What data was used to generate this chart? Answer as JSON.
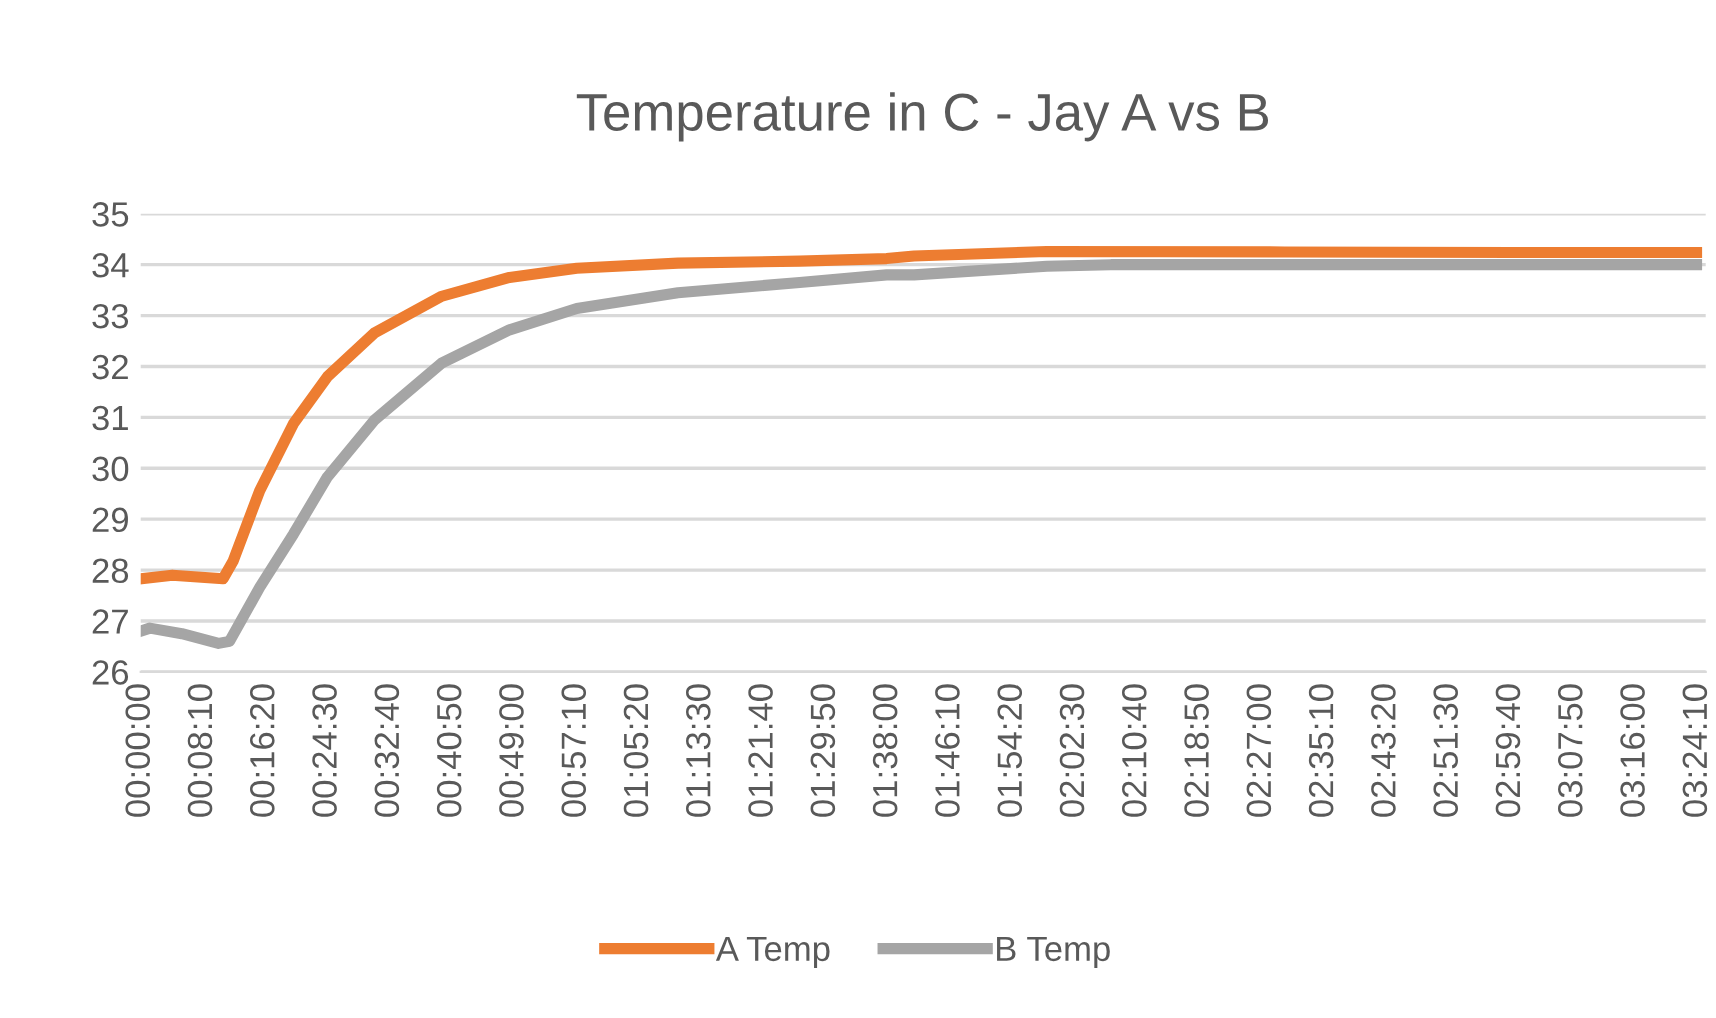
{
  "chart_data": {
    "type": "line",
    "title": "Temperature in C - Jay A vs B",
    "series": [
      {
        "name": "A Temp",
        "color": "#ed7d31",
        "x": [
          0,
          0.069,
          0.18,
          0.202,
          0.26,
          0.334,
          0.408,
          0.511,
          0.658,
          0.806,
          0.953,
          1.174,
          1.44,
          1.63,
          1.69,
          1.98,
          2.5,
          3.0,
          3.4
        ],
        "values": [
          27.83,
          27.9,
          27.83,
          28.18,
          29.56,
          30.88,
          31.8,
          32.66,
          33.38,
          33.75,
          33.93,
          34.03,
          34.07,
          34.12,
          34.17,
          34.26,
          34.25,
          34.24,
          34.24
        ]
      },
      {
        "name": "B Temp",
        "color": "#a5a5a5",
        "x": [
          0,
          0.02,
          0.09,
          0.17,
          0.194,
          0.26,
          0.334,
          0.408,
          0.511,
          0.658,
          0.806,
          0.953,
          1.174,
          1.44,
          1.63,
          1.69,
          1.98,
          2.12,
          2.8,
          3.4
        ],
        "values": [
          26.8,
          26.86,
          26.75,
          26.56,
          26.6,
          27.66,
          28.71,
          29.83,
          30.95,
          32.07,
          32.72,
          33.14,
          33.45,
          33.65,
          33.8,
          33.8,
          33.97,
          34.0,
          34.0,
          34.0
        ]
      }
    ],
    "xlim": [
      0,
      3.42
    ],
    "xticks": [
      {
        "value": 0,
        "label": "00:00:00"
      },
      {
        "value": 0.1361,
        "label": "00:08:10"
      },
      {
        "value": 0.2722,
        "label": "00:16:20"
      },
      {
        "value": 0.4083,
        "label": "00:24:30"
      },
      {
        "value": 0.5444,
        "label": "00:32:40"
      },
      {
        "value": 0.6806,
        "label": "00:40:50"
      },
      {
        "value": 0.8167,
        "label": "00:49:00"
      },
      {
        "value": 0.9528,
        "label": "00:57:10"
      },
      {
        "value": 1.0889,
        "label": "01:05:20"
      },
      {
        "value": 1.225,
        "label": "01:13:30"
      },
      {
        "value": 1.3611,
        "label": "01:21:40"
      },
      {
        "value": 1.4972,
        "label": "01:29:50"
      },
      {
        "value": 1.6333,
        "label": "01:38:00"
      },
      {
        "value": 1.7694,
        "label": "01:46:10"
      },
      {
        "value": 1.9056,
        "label": "01:54:20"
      },
      {
        "value": 2.0417,
        "label": "02:02:30"
      },
      {
        "value": 2.1778,
        "label": "02:10:40"
      },
      {
        "value": 2.3139,
        "label": "02:18:50"
      },
      {
        "value": 2.45,
        "label": "02:27:00"
      },
      {
        "value": 2.5861,
        "label": "02:35:10"
      },
      {
        "value": 2.7222,
        "label": "02:43:20"
      },
      {
        "value": 2.8583,
        "label": "02:51:30"
      },
      {
        "value": 2.9944,
        "label": "02:59:40"
      },
      {
        "value": 3.1306,
        "label": "03:07:50"
      },
      {
        "value": 3.2667,
        "label": "03:16:00"
      },
      {
        "value": 3.4028,
        "label": "03:24:10"
      }
    ],
    "ylim": [
      26,
      35
    ],
    "yticks": [
      26,
      27,
      28,
      29,
      30,
      31,
      32,
      33,
      34,
      35
    ],
    "grid": "y",
    "legend": "bottom",
    "marker": "none",
    "line_style": "solid"
  }
}
